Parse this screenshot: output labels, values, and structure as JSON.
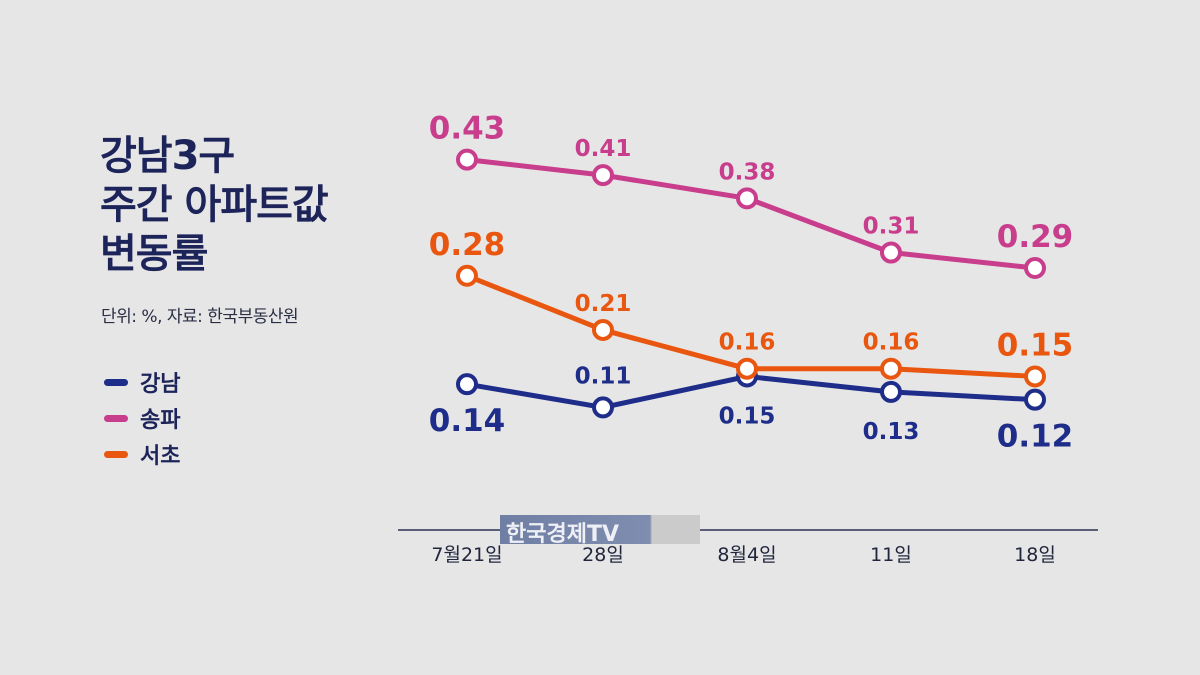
{
  "title": {
    "line1": "강남3구",
    "line2": "주간 아파트값",
    "line3": "변동률"
  },
  "source_note": "단위: %, 자료: 한국부동산원",
  "watermark": "한국경제TV",
  "colors": {
    "gangnam": "#1f2d8a",
    "songpa": "#c83d8c",
    "seocho": "#e8560f",
    "title": "#1d2459",
    "background": "#e6e6e6"
  },
  "chart_data": {
    "type": "line",
    "categories": [
      "7월21일",
      "28일",
      "8월4일",
      "11일",
      "18일"
    ],
    "series": [
      {
        "name": "강남",
        "color": "#1f2d8a",
        "values": [
          0.14,
          0.11,
          0.15,
          0.13,
          0.12
        ]
      },
      {
        "name": "송파",
        "color": "#c83d8c",
        "values": [
          0.43,
          0.41,
          0.38,
          0.31,
          0.29
        ]
      },
      {
        "name": "서초",
        "color": "#e8560f",
        "values": [
          0.28,
          0.21,
          0.16,
          0.16,
          0.15
        ]
      }
    ],
    "legend_position": "left",
    "grid": false
  }
}
